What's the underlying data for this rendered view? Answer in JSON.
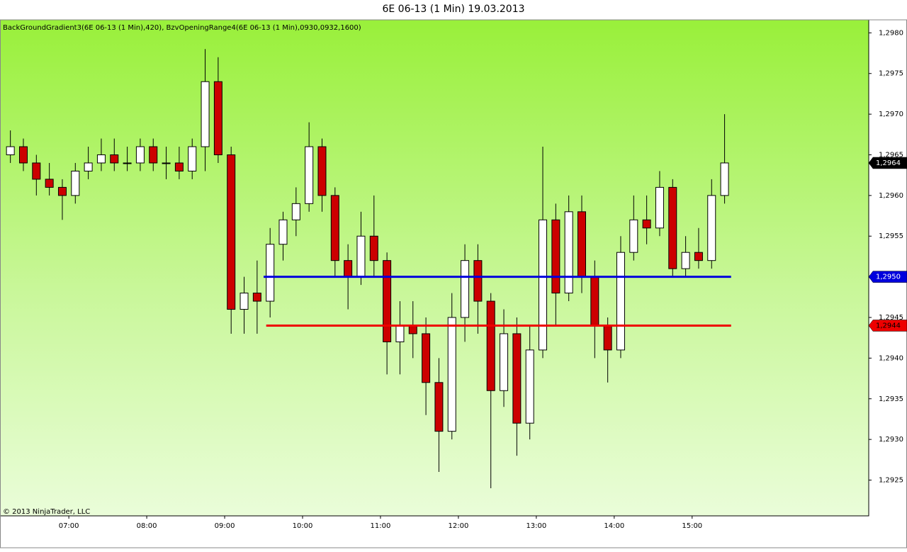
{
  "chart_data": {
    "type": "candlestick",
    "title": "6E 06-13 (1 Min)  19.03.2013",
    "indicators": "BackGroundGradient3(6E 06-13 (1 Min),420), BzvOpeningRange4(6E 06-13 (1 Min),0930,0932,1600)",
    "copyright": "© 2013 NinjaTrader, LLC",
    "x": [
      "06:10",
      "06:20",
      "06:30",
      "06:40",
      "06:50",
      "07:00",
      "07:10",
      "07:20",
      "07:30",
      "07:40",
      "07:50",
      "08:00",
      "08:10",
      "08:20",
      "08:30",
      "08:40",
      "08:50",
      "09:00",
      "09:10",
      "09:20",
      "09:30",
      "09:40",
      "09:50",
      "10:00",
      "10:10",
      "10:20",
      "10:30",
      "10:40",
      "10:50",
      "11:00",
      "11:10",
      "11:20",
      "11:30",
      "11:40",
      "11:50",
      "12:00",
      "12:10",
      "12:20",
      "12:30",
      "12:40",
      "12:50",
      "13:00",
      "13:10",
      "13:20",
      "13:30",
      "13:40",
      "13:50",
      "14:00",
      "14:10",
      "14:20",
      "14:30",
      "14:40",
      "14:50",
      "15:00",
      "15:10",
      "15:20"
    ],
    "open": [
      1.2965,
      1.2966,
      1.2964,
      1.2962,
      1.2961,
      1.296,
      1.2963,
      1.2964,
      1.2965,
      1.2964,
      1.2964,
      1.2966,
      1.2964,
      1.2964,
      1.2963,
      1.2966,
      1.2974,
      1.2965,
      1.2946,
      1.2948,
      1.2947,
      1.2954,
      1.2957,
      1.2959,
      1.2966,
      1.296,
      1.2952,
      1.295,
      1.2955,
      1.2952,
      1.2942,
      1.2944,
      1.2943,
      1.2937,
      1.2931,
      1.2945,
      1.2952,
      1.2947,
      1.2936,
      1.2943,
      1.2932,
      1.2941,
      1.2957,
      1.2948,
      1.2958,
      1.295,
      1.2944,
      1.2941,
      1.2953,
      1.2957,
      1.2956,
      1.2961,
      1.2951,
      1.2953,
      1.2952,
      1.296
    ],
    "high": [
      1.2968,
      1.2967,
      1.2965,
      1.2964,
      1.2962,
      1.2964,
      1.2966,
      1.2967,
      1.2967,
      1.2966,
      1.2967,
      1.2967,
      1.2966,
      1.2966,
      1.2967,
      1.2978,
      1.2977,
      1.2966,
      1.295,
      1.2952,
      1.2956,
      1.2958,
      1.2961,
      1.2969,
      1.2967,
      1.2961,
      1.2954,
      1.2958,
      1.296,
      1.2953,
      1.2947,
      1.2947,
      1.2945,
      1.294,
      1.2948,
      1.2954,
      1.2954,
      1.2948,
      1.2946,
      1.2945,
      1.2944,
      1.2966,
      1.2959,
      1.296,
      1.296,
      1.2952,
      1.2945,
      1.2955,
      1.296,
      1.296,
      1.2963,
      1.2962,
      1.2955,
      1.2956,
      1.2962,
      1.297
    ],
    "low": [
      1.2964,
      1.2963,
      1.296,
      1.296,
      1.2957,
      1.2959,
      1.2962,
      1.2963,
      1.2963,
      1.2963,
      1.2963,
      1.2963,
      1.2962,
      1.2962,
      1.2962,
      1.2963,
      1.2964,
      1.2943,
      1.2943,
      1.2943,
      1.2945,
      1.2952,
      1.2955,
      1.2958,
      1.2958,
      1.295,
      1.2946,
      1.2949,
      1.295,
      1.2938,
      1.2938,
      1.294,
      1.2933,
      1.2926,
      1.293,
      1.2942,
      1.2943,
      1.2924,
      1.2934,
      1.2928,
      1.293,
      1.294,
      1.2944,
      1.2947,
      1.2948,
      1.294,
      1.2937,
      1.294,
      1.2952,
      1.2954,
      1.2955,
      1.295,
      1.295,
      1.2951,
      1.2951,
      1.2959
    ],
    "close": [
      1.2966,
      1.2964,
      1.2962,
      1.2961,
      1.296,
      1.2963,
      1.2964,
      1.2965,
      1.2964,
      1.2964,
      1.2966,
      1.2964,
      1.2964,
      1.2963,
      1.2966,
      1.2974,
      1.2965,
      1.2946,
      1.2948,
      1.2947,
      1.2954,
      1.2957,
      1.2959,
      1.2966,
      1.296,
      1.2952,
      1.295,
      1.2955,
      1.2952,
      1.2942,
      1.2944,
      1.2943,
      1.2937,
      1.2931,
      1.2945,
      1.2952,
      1.2947,
      1.2936,
      1.2943,
      1.2932,
      1.2941,
      1.2957,
      1.2948,
      1.2958,
      1.295,
      1.2944,
      1.2941,
      1.2953,
      1.2957,
      1.2956,
      1.2961,
      1.2951,
      1.2953,
      1.2952,
      1.296,
      1.2964
    ],
    "up_color": "#ffffff",
    "down_color": "#cc0000",
    "xlim": [
      "06:07",
      "17:16"
    ],
    "xticks": [
      "07:00",
      "08:00",
      "09:00",
      "10:00",
      "11:00",
      "12:00",
      "13:00",
      "14:00",
      "15:00"
    ],
    "ylim": [
      1.29206,
      1.29816
    ],
    "yticks": [
      {
        "value": 1.2925,
        "label": "1,2925"
      },
      {
        "value": 1.293,
        "label": "1,2930"
      },
      {
        "value": 1.2935,
        "label": "1,2935"
      },
      {
        "value": 1.294,
        "label": "1,2940"
      },
      {
        "value": 1.2945,
        "label": "1,2945"
      },
      {
        "value": 1.295,
        "label": "1,2950"
      },
      {
        "value": 1.2955,
        "label": "1,2955"
      },
      {
        "value": 1.296,
        "label": "1,2960"
      },
      {
        "value": 1.2965,
        "label": "1,2965"
      },
      {
        "value": 1.297,
        "label": "1,2970"
      },
      {
        "value": 1.2975,
        "label": "1,2975"
      },
      {
        "value": 1.298,
        "label": "1,2980"
      }
    ],
    "reference_lines": [
      {
        "value": 1.295,
        "label": "1,2950",
        "color": "#0000dd",
        "start": "09:30",
        "end": "15:30"
      },
      {
        "value": 1.2944,
        "label": "1,2944",
        "color": "#ee0000",
        "start": "09:32",
        "end": "15:30"
      }
    ],
    "last_price": {
      "value": 1.2964,
      "label": "1,2964",
      "color": "#000000"
    }
  }
}
